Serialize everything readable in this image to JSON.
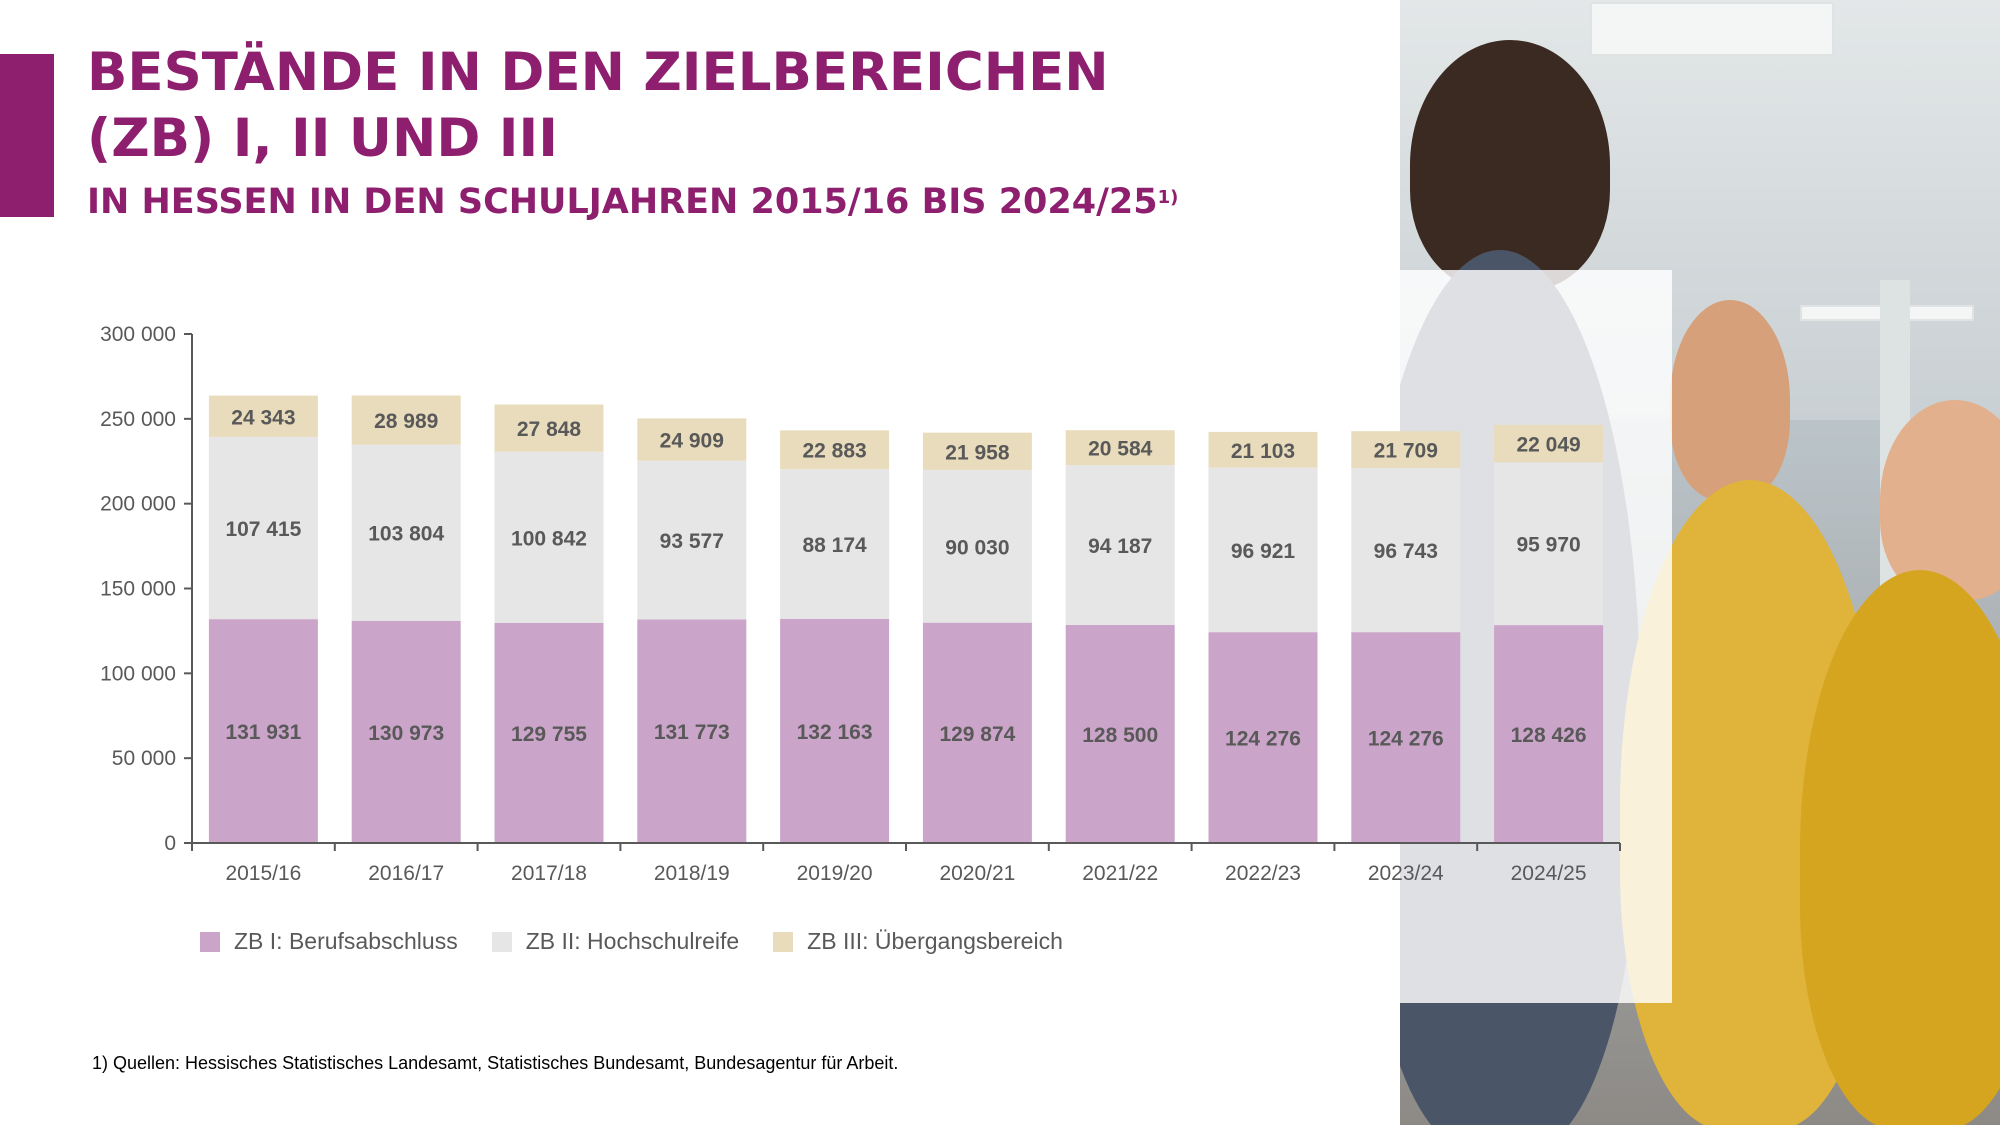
{
  "header": {
    "title_line1": "BESTÄNDE IN DEN ZIELBEREICHEN",
    "title_line2": "(ZB) I, II UND III",
    "subtitle": "IN HESSEN IN DEN SCHULJAHREN 2015/16 BIS 2024/25",
    "subtitle_footnote_mark": "1)"
  },
  "colors": {
    "accent": "#8e1f6f",
    "zb1": "#cba5c9",
    "zb2": "#e6e6e6",
    "zb3": "#e8dcbc"
  },
  "chart_data": {
    "type": "bar",
    "stacked": true,
    "categories": [
      "2015/16",
      "2016/17",
      "2017/18",
      "2018/19",
      "2019/20",
      "2020/21",
      "2021/22",
      "2022/23",
      "2023/24",
      "2024/25"
    ],
    "series": [
      {
        "name": "ZB I: Berufsabschluss",
        "values": [
          131931,
          130973,
          129755,
          131773,
          132163,
          129874,
          128500,
          124276,
          124276,
          128426
        ],
        "labels": [
          "131 931",
          "130 973",
          "129 755",
          "131 773",
          "132 163",
          "129 874",
          "128 500",
          "124 276",
          "124 276",
          "128 426"
        ]
      },
      {
        "name": "ZB II: Hochschulreife",
        "values": [
          107415,
          103804,
          100842,
          93577,
          88174,
          90030,
          94187,
          96921,
          96743,
          95970
        ],
        "labels": [
          "107 415",
          "103 804",
          "100 842",
          "93 577",
          "88 174",
          "90 030",
          "94 187",
          "96 921",
          "96 743",
          "95 970"
        ]
      },
      {
        "name": "ZB III: Übergangsbereich",
        "values": [
          24343,
          28989,
          27848,
          24909,
          22883,
          21958,
          20584,
          21103,
          21709,
          22049
        ],
        "labels": [
          "24 343",
          "28 989",
          "27 848",
          "24 909",
          "22 883",
          "21 958",
          "20 584",
          "21 103",
          "21 709",
          "22 049"
        ]
      }
    ],
    "ylim": [
      0,
      300000
    ],
    "yticks": [
      0,
      50000,
      100000,
      150000,
      200000,
      250000,
      300000
    ],
    "ytick_labels": [
      "0",
      "50 000",
      "100 000",
      "150 000",
      "200 000",
      "250 000",
      "300 000"
    ],
    "legend_position": "bottom",
    "grid": false
  },
  "footnote": "1) Quellen: Hessisches Statistisches Landesamt, Statistisches Bundesamt, Bundesagentur für Arbeit."
}
